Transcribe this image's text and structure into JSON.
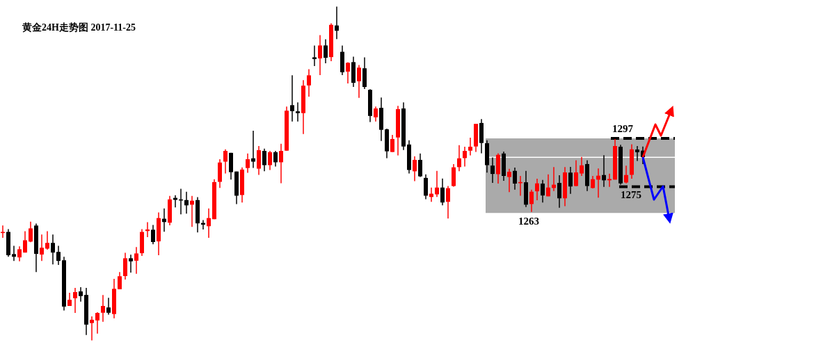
{
  "chart_data": {
    "type": "candlestick",
    "title": "黄金24H走势图 2017-11-25",
    "categories": [
      null,
      null,
      null,
      null,
      null,
      null,
      null,
      null,
      null,
      null,
      null,
      null,
      null,
      null,
      null,
      null,
      null,
      null,
      null,
      null,
      null,
      null,
      null,
      null,
      null,
      null,
      null,
      null,
      null,
      null,
      null,
      null,
      null,
      null,
      null,
      null,
      null,
      null,
      null,
      null,
      null,
      null,
      null,
      null,
      null,
      null,
      null,
      null,
      null,
      null,
      null,
      null,
      null,
      null,
      null,
      null,
      null,
      null,
      null,
      null,
      null,
      null,
      null,
      null,
      null,
      null,
      null,
      null,
      null,
      null,
      null,
      null,
      null,
      null,
      null,
      null,
      null,
      null,
      null,
      null,
      null,
      null,
      null,
      null,
      null,
      null,
      null,
      null,
      null,
      null,
      null,
      null,
      null,
      null,
      null,
      null,
      null,
      null,
      null,
      null,
      null,
      null,
      null,
      null,
      null,
      null,
      null,
      null,
      null,
      null,
      null,
      null,
      null,
      null,
      null,
      null
    ],
    "ohlc": [
      [
        1253.9,
        1257.3,
        1251.7,
        1254.4
      ],
      [
        1254.4,
        1255.7,
        1243.1,
        1243.8
      ],
      [
        1244.3,
        1248.1,
        1241.2,
        1243.1
      ],
      [
        1242.8,
        1247.8,
        1241.0,
        1246.5
      ],
      [
        1245.0,
        1254.7,
        1245.0,
        1250.6
      ],
      [
        1250.0,
        1259.1,
        1249.7,
        1256.0
      ],
      [
        1257.3,
        1258.2,
        1236.1,
        1244.4
      ],
      [
        1244.1,
        1253.2,
        1241.2,
        1247.2
      ],
      [
        1246.8,
        1254.7,
        1246.3,
        1249.4
      ],
      [
        1249.4,
        1253.2,
        1239.6,
        1245.0
      ],
      [
        1245.3,
        1248.1,
        1239.4,
        1241.2
      ],
      [
        1241.5,
        1243.1,
        1218.6,
        1220.4
      ],
      [
        1220.7,
        1226.7,
        1220.7,
        1223.5
      ],
      [
        1224.2,
        1228.9,
        1217.5,
        1227.0
      ],
      [
        1227.3,
        1229.2,
        1222.7,
        1225.2
      ],
      [
        1225.7,
        1228.9,
        1207.5,
        1212.2
      ],
      [
        1212.9,
        1215.9,
        1205.0,
        1214.4
      ],
      [
        1214.1,
        1217.8,
        1208.1,
        1217.5
      ],
      [
        1217.6,
        1225.7,
        1213.5,
        1220.7
      ],
      [
        1220.0,
        1224.4,
        1216.7,
        1217.6
      ],
      [
        1217.0,
        1233.0,
        1215.1,
        1228.5
      ],
      [
        1228.3,
        1236.1,
        1228.3,
        1234.2
      ],
      [
        1234.3,
        1244.9,
        1232.7,
        1242.4
      ],
      [
        1242.4,
        1244.0,
        1235.9,
        1241.0
      ],
      [
        1241.3,
        1247.5,
        1235.3,
        1244.6
      ],
      [
        1244.7,
        1255.7,
        1243.5,
        1254.4
      ],
      [
        1254.8,
        1258.8,
        1252.0,
        1255.5
      ],
      [
        1255.4,
        1257.6,
        1248.8,
        1249.8
      ],
      [
        1250.1,
        1263.3,
        1243.8,
        1260.7
      ],
      [
        1260.4,
        1265.1,
        1254.5,
        1258.9
      ],
      [
        1258.6,
        1270.8,
        1257.4,
        1269.2
      ],
      [
        1269.9,
        1271.1,
        1265.6,
        1269.0
      ],
      [
        1269.2,
        1274.0,
        1262.4,
        1268.7
      ],
      [
        1268.9,
        1272.7,
        1262.7,
        1266.5
      ],
      [
        1266.8,
        1270.8,
        1256.7,
        1268.6
      ],
      [
        1268.9,
        1270.2,
        1254.2,
        1258.3
      ],
      [
        1258.5,
        1259.8,
        1255.5,
        1257.7
      ],
      [
        1257.0,
        1265.1,
        1251.7,
        1260.7
      ],
      [
        1260.2,
        1278.4,
        1260.2,
        1277.1
      ],
      [
        1277.2,
        1287.5,
        1274.4,
        1286.0
      ],
      [
        1286.4,
        1292.0,
        1281.0,
        1291.3
      ],
      [
        1290.4,
        1290.4,
        1278.2,
        1281.6
      ],
      [
        1281.9,
        1281.9,
        1267.1,
        1270.9
      ],
      [
        1271.2,
        1283.8,
        1267.8,
        1282.8
      ],
      [
        1283.5,
        1290.1,
        1281.3,
        1287.5
      ],
      [
        1287.9,
        1300.5,
        1283.5,
        1286.4
      ],
      [
        1283.2,
        1293.5,
        1280.4,
        1291.6
      ],
      [
        1291.3,
        1292.3,
        1282.0,
        1284.8
      ],
      [
        1284.8,
        1291.3,
        1282.6,
        1290.7
      ],
      [
        1290.7,
        1291.3,
        1284.2,
        1286.1
      ],
      [
        1286.1,
        1294.5,
        1276.6,
        1291.3
      ],
      [
        1291.4,
        1311.5,
        1291.4,
        1309.6
      ],
      [
        1312.1,
        1325.7,
        1304.7,
        1309.4
      ],
      [
        1309.3,
        1313.4,
        1304.7,
        1308.5
      ],
      [
        1308.5,
        1323.5,
        1299.0,
        1321.0
      ],
      [
        1321.1,
        1328.5,
        1316.0,
        1325.7
      ],
      [
        1333.9,
        1339.3,
        1329.9,
        1333.1
      ],
      [
        1333.4,
        1344.0,
        1325.8,
        1339.3
      ],
      [
        1339.3,
        1342.1,
        1331.2,
        1333.7
      ],
      [
        1334.0,
        1349.4,
        1332.1,
        1348.7
      ],
      [
        1348.4,
        1357.0,
        1342.2,
        1346.0
      ],
      [
        1336.4,
        1339.3,
        1325.8,
        1327.1
      ],
      [
        1327.4,
        1331.7,
        1322.0,
        1331.4
      ],
      [
        1331.7,
        1334.2,
        1320.4,
        1322.3
      ],
      [
        1323.0,
        1330.4,
        1315.4,
        1329.2
      ],
      [
        1328.9,
        1333.9,
        1319.5,
        1320.4
      ],
      [
        1319.1,
        1319.4,
        1304.4,
        1307.2
      ],
      [
        1306.6,
        1311.5,
        1304.7,
        1310.6
      ],
      [
        1310.9,
        1315.6,
        1295.8,
        1300.9
      ],
      [
        1301.1,
        1301.4,
        1288.0,
        1291.1
      ],
      [
        1290.8,
        1298.6,
        1290.8,
        1296.7
      ],
      [
        1297.4,
        1311.8,
        1289.2,
        1310.3
      ],
      [
        1310.6,
        1313.4,
        1291.7,
        1293.3
      ],
      [
        1294.2,
        1296.1,
        1281.0,
        1282.6
      ],
      [
        1282.0,
        1288.8,
        1277.5,
        1287.2
      ],
      [
        1287.2,
        1290.1,
        1279.4,
        1279.7
      ],
      [
        1279.0,
        1280.6,
        1269.3,
        1270.9
      ],
      [
        1270.3,
        1274.6,
        1268.1,
        1271.8
      ],
      [
        1271.5,
        1282.2,
        1270.3,
        1274.6
      ],
      [
        1274.6,
        1278.7,
        1266.5,
        1267.8
      ],
      [
        1268.1,
        1275.3,
        1260.5,
        1274.3
      ],
      [
        1275.3,
        1285.3,
        1275.0,
        1283.8
      ],
      [
        1283.9,
        1293.9,
        1282.0,
        1287.9
      ],
      [
        1288.0,
        1293.2,
        1284.2,
        1291.3
      ],
      [
        1291.4,
        1297.3,
        1289.2,
        1293.2
      ],
      [
        1293.3,
        1303.6,
        1290.8,
        1303.6
      ],
      [
        1304.0,
        1305.8,
        1290.2,
        1294.9
      ],
      [
        1294.8,
        1296.1,
        1281.4,
        1284.8
      ],
      [
        1284.6,
        1288.3,
        1276.7,
        1280.8
      ],
      [
        1280.7,
        1290.2,
        1276.4,
        1289.5
      ],
      [
        1290.1,
        1291.0,
        1277.7,
        1279.9
      ],
      [
        1279.4,
        1283.1,
        1272.5,
        1281.8
      ],
      [
        1282.2,
        1283.7,
        1273.6,
        1276.4
      ],
      [
        1276.6,
        1279.9,
        1270.9,
        1277.1
      ],
      [
        1277.0,
        1282.2,
        1265.7,
        1266.8
      ],
      [
        1267.1,
        1273.6,
        1263.5,
        1272.7
      ],
      [
        1272.9,
        1278.6,
        1268.8,
        1276.5
      ],
      [
        1276.4,
        1278.1,
        1267.8,
        1271.0
      ],
      [
        1270.6,
        1280.6,
        1270.6,
        1274.6
      ],
      [
        1274.4,
        1283.9,
        1273.0,
        1275.9
      ],
      [
        1276.7,
        1280.2,
        1265.4,
        1269.7
      ],
      [
        1269.7,
        1283.9,
        1266.1,
        1281.5
      ],
      [
        1281.4,
        1284.0,
        1271.7,
        1275.1
      ],
      [
        1275.3,
        1287.0,
        1275.2,
        1281.5
      ],
      [
        1281.0,
        1288.5,
        1279.9,
        1284.7
      ],
      [
        1285.3,
        1287.0,
        1273.0,
        1275.3
      ],
      [
        1274.4,
        1279.9,
        1274.2,
        1278.4
      ],
      [
        1278.2,
        1283.3,
        1270.0,
        1280.0
      ],
      [
        1280.3,
        1289.3,
        1274.9,
        1277.9
      ],
      [
        1277.9,
        1280.9,
        1274.9,
        1278.5
      ],
      [
        1278.2,
        1296.7,
        1278.2,
        1293.5
      ],
      [
        1293.2,
        1294.1,
        1275.9,
        1276.5
      ],
      [
        1276.9,
        1284.6,
        1276.5,
        1280.3
      ],
      [
        1280.4,
        1294.3,
        1278.6,
        1292.0
      ],
      [
        1291.9,
        1293.5,
        1286.7,
        1290.7
      ],
      [
        1291.4,
        1293.3,
        1285.3,
        1288.4
      ]
    ],
    "colors": [
      "#ff0000",
      "#000000",
      "#000000",
      "#ff0000",
      "#ff0000",
      "#ff0000",
      "#000000",
      "#ff0000",
      "#ff0000",
      "#000000",
      "#000000",
      "#000000",
      "#ff0000",
      "#ff0000",
      "#000000",
      "#000000",
      "#ff0000",
      "#ff0000",
      "#ff0000",
      "#000000",
      "#ff0000",
      "#ff0000",
      "#ff0000",
      "#000000",
      "#ff0000",
      "#ff0000",
      "#ff0000",
      "#000000",
      "#ff0000",
      "#000000",
      "#ff0000",
      "#000000",
      "#000000",
      "#000000",
      "#ff0000",
      "#000000",
      "#000000",
      "#ff0000",
      "#ff0000",
      "#ff0000",
      "#ff0000",
      "#000000",
      "#000000",
      "#ff0000",
      "#ff0000",
      "#000000",
      "#ff0000",
      "#000000",
      "#ff0000",
      "#000000",
      "#ff0000",
      "#ff0000",
      "#000000",
      "#000000",
      "#ff0000",
      "#ff0000",
      "#000000",
      "#ff0000",
      "#000000",
      "#ff0000",
      "#000000",
      "#000000",
      "#ff0000",
      "#000000",
      "#ff0000",
      "#000000",
      "#000000",
      "#ff0000",
      "#000000",
      "#000000",
      "#ff0000",
      "#ff0000",
      "#000000",
      "#000000",
      "#ff0000",
      "#000000",
      "#000000",
      "#ff0000",
      "#ff0000",
      "#000000",
      "#ff0000",
      "#ff0000",
      "#ff0000",
      "#ff0000",
      "#ff0000",
      "#ff0000",
      "#000000",
      "#000000",
      "#000000",
      "#ff0000",
      "#000000",
      "#ff0000",
      "#000000",
      "#ff0000",
      "#000000",
      "#ff0000",
      "#ff0000",
      "#000000",
      "#ff0000",
      "#ff0000",
      "#000000",
      "#ff0000",
      "#000000",
      "#ff0000",
      "#ff0000",
      "#000000",
      "#ff0000",
      "#ff0000",
      "#000000",
      "#ff0000",
      "#ff0000",
      "#000000",
      "#ff0000",
      "#ff0000",
      "#000000",
      "#000000"
    ],
    "ylim": [
      1202,
      1360
    ],
    "tick_labels": false,
    "grid": false,
    "legend": false,
    "bands": [
      {
        "axis": "y",
        "from": 1263,
        "to": 1297,
        "label": "1263",
        "color": "#aaaaaa"
      }
    ],
    "ref_lines": [
      {
        "axis": "y",
        "value": 1288.4,
        "color": "#ffffff",
        "line_style": "solid"
      },
      {
        "axis": "y",
        "value": 1297,
        "label": "1297",
        "color": "#000000",
        "line_style": "dashed"
      },
      {
        "axis": "y",
        "value": 1275,
        "label": "1275",
        "color": "#000000",
        "line_style": "dashed"
      }
    ]
  }
}
